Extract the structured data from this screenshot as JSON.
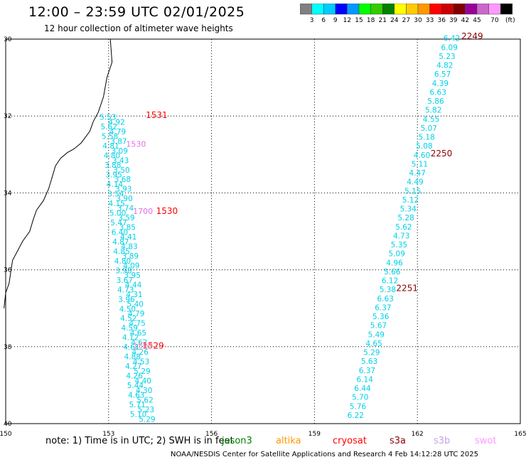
{
  "title": "12:00 – 23:59 UTC 02/01/2025",
  "subtitle": "12 hour collection of altimeter wave heights",
  "colorbar": {
    "labels": [
      "3",
      "6",
      "9",
      "12",
      "15",
      "18",
      "21",
      "24",
      "27",
      "30",
      "33",
      "36",
      "39",
      "42",
      "45",
      "70"
    ],
    "unit": "(ft)",
    "colors": [
      "#808080",
      "#00ffff",
      "#00ccff",
      "#0000ff",
      "#0099ff",
      "#00ff00",
      "#33cc00",
      "#008000",
      "#ffff00",
      "#ffcc00",
      "#ff9900",
      "#ff0000",
      "#cc0000",
      "#800000",
      "#990099",
      "#cc66cc",
      "#ff99ff",
      "#000000"
    ]
  },
  "axes": {
    "lat_labels": [
      "30",
      "32",
      "34",
      "36",
      "38",
      "40"
    ],
    "lon_labels": [
      "150",
      "153",
      "156",
      "159",
      "162",
      "165"
    ]
  },
  "track_west": {
    "values": [
      "5.53",
      "4.92",
      "5.62",
      "4.79",
      "5.58",
      "3.87",
      "4.81",
      "3.09",
      "4.80",
      "3.43",
      "3.88",
      "3.50",
      "3.95",
      "3.68",
      "4.14",
      "3.93",
      "3.54",
      "3.90",
      "4.15",
      "3.74",
      "5.00",
      "3.59",
      "5.47",
      "3.85",
      "6.40",
      "4.41",
      "4.87",
      "4.83",
      "4.85",
      "3.89",
      "4.80",
      "4.09",
      "3.98",
      "3.95",
      "3.67",
      "4.44",
      "4.73",
      "4.31",
      "3.96",
      "5.40",
      "4.50",
      "4.79",
      "4.52",
      "4.75",
      "4.59",
      "4.65",
      "4.12",
      "4.62",
      "4.61",
      "4.26",
      "4.88",
      "4.53",
      "4.27",
      "5.29",
      "4.26",
      "4.40",
      "5.44",
      "4.30",
      "4.63",
      "5.62",
      "5.71",
      "5.23",
      "5.10",
      "5.29"
    ],
    "color": "#00d0e8"
  },
  "track_east": {
    "values": [
      "6.42",
      "6.09",
      "5.23",
      "4.82",
      "6.57",
      "4.39",
      "6.63",
      "5.86",
      "5.82",
      "4.55",
      "5.07",
      "5.18",
      "5.08",
      "4.60",
      "5.11",
      "4.47",
      "4.49",
      "5.15",
      "5.12",
      "5.34",
      "5.28",
      "5.62",
      "4.73",
      "5.35",
      "5.09",
      "4.96",
      "5.66",
      "6.12",
      "5.38",
      "6.63",
      "6.37",
      "5.36",
      "5.67",
      "5.49",
      "4.65",
      "5.29",
      "5.63",
      "6.37",
      "6.14",
      "6.44",
      "5.70",
      "5.76",
      "6.22"
    ],
    "color": "#00d0e8"
  },
  "time_labels": [
    {
      "text": "1531",
      "color": "#ff0000",
      "lat": 32.05,
      "lon": 154.4
    },
    {
      "text": "1530",
      "color": "#ff0000",
      "lat": 34.55,
      "lon": 154.7
    },
    {
      "text": "1529",
      "color": "#ff0000",
      "lat": 38.05,
      "lon": 154.3
    },
    {
      "text": "2249",
      "color": "#8b0000",
      "lat": 30.0,
      "lon": 163.6
    },
    {
      "text": "2250",
      "color": "#8b0000",
      "lat": 33.05,
      "lon": 162.7
    },
    {
      "text": "2251",
      "color": "#8b0000",
      "lat": 36.55,
      "lon": 161.7
    }
  ],
  "overlap_labels": [
    {
      "text": "1530",
      "color": "#e070e0",
      "lat": 32.8,
      "lon": 153.8
    },
    {
      "text": "1700",
      "color": "#e070e0",
      "lat": 34.55,
      "lon": 154.0
    },
    {
      "text": "1500",
      "color": "#ff80c0",
      "lat": 38.05,
      "lon": 154.0
    }
  ],
  "note": {
    "prefix": "note: 1) Time is in UTC; 2) SWH is in feet",
    "satellites": [
      {
        "name": "jason3",
        "color": "#008000"
      },
      {
        "name": "altika",
        "color": "#ff9900"
      },
      {
        "name": "cryosat",
        "color": "#ff0000"
      },
      {
        "name": "s3a",
        "color": "#8b0000"
      },
      {
        "name": "s3b",
        "color": "#c8a0e8"
      },
      {
        "name": "swot",
        "color": "#ff99ff"
      }
    ]
  },
  "footer": "NOAA/NESDIS Center for Satellite Applications and Research    4 Feb 14:12:28 UTC 2025"
}
